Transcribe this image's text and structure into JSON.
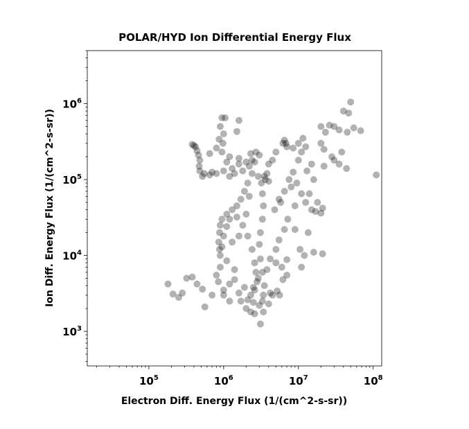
{
  "chart_data": {
    "type": "scatter",
    "title": "POLAR/HYD  Ion Differential Energy Flux",
    "xlabel": "Electron Diff. Energy Flux (1/(cm^2-s-sr))",
    "ylabel": "Ion Diff. Energy Flux (1/(cm^2-s-sr))",
    "xscale": "log",
    "yscale": "log",
    "xlim": [
      15000,
      130000000
    ],
    "ylim": [
      350,
      5000000
    ],
    "grid": false,
    "marker_color": "#000000",
    "marker_alpha": 0.3,
    "x_ticks": [
      {
        "value": 100000,
        "base": "10",
        "exp": "5"
      },
      {
        "value": 1000000,
        "base": "10",
        "exp": "6"
      },
      {
        "value": 10000000,
        "base": "10",
        "exp": "7"
      },
      {
        "value": 100000000,
        "base": "10",
        "exp": "8"
      }
    ],
    "y_ticks": [
      {
        "value": 1000,
        "base": "10",
        "exp": "3"
      },
      {
        "value": 10000,
        "base": "10",
        "exp": "4"
      },
      {
        "value": 100000,
        "base": "10",
        "exp": "5"
      },
      {
        "value": 1000000,
        "base": "10",
        "exp": "6"
      }
    ],
    "series": [
      {
        "points": [
          [
            380000,
            290000
          ],
          [
            400000,
            280000
          ],
          [
            420000,
            270000
          ],
          [
            440000,
            240000
          ],
          [
            460000,
            210000
          ],
          [
            480000,
            180000
          ],
          [
            470000,
            150000
          ],
          [
            480000,
            130000
          ],
          [
            550000,
            120000
          ],
          [
            650000,
            115000
          ],
          [
            800000,
            120000
          ],
          [
            1000000,
            130000
          ],
          [
            1300000,
            140000
          ],
          [
            1600000,
            160000
          ],
          [
            2000000,
            170000
          ],
          [
            2400000,
            180000
          ],
          [
            2600000,
            170000
          ],
          [
            2400000,
            120000
          ],
          [
            2100000,
            90000
          ],
          [
            1900000,
            70000
          ],
          [
            1700000,
            55000
          ],
          [
            1500000,
            45000
          ],
          [
            1300000,
            40000
          ],
          [
            1100000,
            35000
          ],
          [
            950000,
            30000
          ],
          [
            900000,
            25000
          ],
          [
            880000,
            20000
          ],
          [
            860000,
            15000
          ],
          [
            880000,
            12000
          ],
          [
            900000,
            10000
          ],
          [
            950000,
            13000
          ],
          [
            1000000,
            18000
          ],
          [
            1100000,
            24000
          ],
          [
            1200000,
            30000
          ],
          [
            1500000,
            32000
          ],
          [
            1800000,
            25000
          ],
          [
            2100000,
            18000
          ],
          [
            2400000,
            12000
          ],
          [
            2600000,
            8000
          ],
          [
            2700000,
            6000
          ],
          [
            2800000,
            4500
          ],
          [
            2600000,
            3500
          ],
          [
            2300000,
            3000
          ],
          [
            2100000,
            2600
          ],
          [
            2500000,
            2400
          ],
          [
            3000000,
            2200
          ],
          [
            3300000,
            2500
          ],
          [
            3400000,
            3000
          ],
          [
            3500000,
            4000
          ],
          [
            3300000,
            6000
          ],
          [
            3100000,
            9000
          ],
          [
            3000000,
            14000
          ],
          [
            3100000,
            20000
          ],
          [
            3300000,
            30000
          ],
          [
            3400000,
            45000
          ],
          [
            3300000,
            65000
          ],
          [
            3200000,
            90000
          ],
          [
            3500000,
            110000
          ],
          [
            3800000,
            120000
          ],
          [
            3600000,
            100000
          ],
          [
            2900000,
            110000
          ],
          [
            2200000,
            150000
          ],
          [
            1800000,
            130000
          ],
          [
            1400000,
            120000
          ],
          [
            1200000,
            110000
          ],
          [
            700000,
            125000
          ],
          [
            520000,
            110000
          ],
          [
            1600000,
            3200
          ],
          [
            1900000,
            3800
          ],
          [
            4200000,
            3200
          ],
          [
            180000,
            4200
          ],
          [
            210000,
            3100
          ],
          [
            250000,
            2800
          ],
          [
            280000,
            3200
          ],
          [
            320000,
            5000
          ],
          [
            380000,
            5200
          ],
          [
            440000,
            4200
          ],
          [
            520000,
            3600
          ],
          [
            560000,
            2100
          ],
          [
            700000,
            3000
          ],
          [
            850000,
            4500
          ],
          [
            1000000,
            3000
          ],
          [
            1200000,
            4200
          ],
          [
            1400000,
            4800
          ],
          [
            1700000,
            2500
          ],
          [
            2000000,
            2000
          ],
          [
            2300000,
            1800
          ],
          [
            2600000,
            1700
          ],
          [
            3100000,
            1250
          ],
          [
            3400000,
            1800
          ],
          [
            4000000,
            2300
          ],
          [
            4500000,
            3000
          ],
          [
            5200000,
            3400
          ],
          [
            5600000,
            3000
          ],
          [
            6200000,
            4800
          ],
          [
            7000000,
            5500
          ],
          [
            3800000,
            6500
          ],
          [
            4200000,
            9000
          ],
          [
            5000000,
            8000
          ],
          [
            6000000,
            7000
          ],
          [
            7000000,
            8800
          ],
          [
            1100000,
            8500
          ],
          [
            1400000,
            6500
          ],
          [
            900000,
            7000
          ],
          [
            800000,
            5500
          ],
          [
            5000000,
            12000
          ],
          [
            5500000,
            16000
          ],
          [
            6500000,
            22000
          ],
          [
            7200000,
            30000
          ],
          [
            9000000,
            22000
          ],
          [
            10500000,
            12000
          ],
          [
            11000000,
            7000
          ],
          [
            12000000,
            10000
          ],
          [
            13500000,
            20000
          ],
          [
            16000000,
            11000
          ],
          [
            21000000,
            10500
          ],
          [
            4800000,
            40000
          ],
          [
            5800000,
            50000
          ],
          [
            6500000,
            70000
          ],
          [
            7500000,
            100000
          ],
          [
            8500000,
            125000
          ],
          [
            9500000,
            90000
          ],
          [
            11000000,
            65000
          ],
          [
            12500000,
            50000
          ],
          [
            15000000,
            40000
          ],
          [
            17000000,
            38000
          ],
          [
            20000000,
            36000
          ],
          [
            13000000,
            130000
          ],
          [
            15000000,
            160000
          ],
          [
            10000000,
            180000
          ],
          [
            11000000,
            230000
          ],
          [
            12500000,
            270000
          ],
          [
            11500000,
            350000
          ],
          [
            10000000,
            300000
          ],
          [
            8500000,
            260000
          ],
          [
            6500000,
            330000
          ],
          [
            7000000,
            270000
          ],
          [
            6200000,
            300000
          ],
          [
            5000000,
            230000
          ],
          [
            4500000,
            180000
          ],
          [
            4000000,
            160000
          ],
          [
            3000000,
            210000
          ],
          [
            2700000,
            230000
          ],
          [
            2300000,
            220000
          ],
          [
            1600000,
            190000
          ],
          [
            1200000,
            200000
          ],
          [
            1100000,
            170000
          ],
          [
            950000,
            230000
          ],
          [
            800000,
            260000
          ],
          [
            650000,
            220000
          ],
          [
            950000,
            650000
          ],
          [
            1050000,
            650000
          ],
          [
            1600000,
            600000
          ],
          [
            900000,
            500000
          ],
          [
            1000000,
            400000
          ],
          [
            1500000,
            430000
          ],
          [
            870000,
            340000
          ],
          [
            980000,
            300000
          ],
          [
            20000000,
            500000
          ],
          [
            23000000,
            420000
          ],
          [
            26000000,
            520000
          ],
          [
            30000000,
            500000
          ],
          [
            35000000,
            450000
          ],
          [
            40000000,
            800000
          ],
          [
            47000000,
            750000
          ],
          [
            50000000,
            1050000
          ],
          [
            55000000,
            480000
          ],
          [
            68000000,
            440000
          ],
          [
            45000000,
            420000
          ],
          [
            20000000,
            300000
          ],
          [
            22000000,
            250000
          ],
          [
            28000000,
            200000
          ],
          [
            30000000,
            180000
          ],
          [
            35000000,
            160000
          ],
          [
            38000000,
            230000
          ],
          [
            22000000,
            150000
          ],
          [
            44000000,
            140000
          ],
          [
            110000000,
            115000
          ],
          [
            18000000,
            50000
          ],
          [
            21000000,
            42000
          ],
          [
            16000000,
            100000
          ],
          [
            14000000,
            65000
          ],
          [
            9000000,
            45000
          ],
          [
            8000000,
            80000
          ],
          [
            6800000,
            300000
          ],
          [
            5500000,
            55000
          ],
          [
            4000000,
            95000
          ],
          [
            2200000,
            60000
          ],
          [
            2000000,
            35000
          ],
          [
            1600000,
            18000
          ],
          [
            1300000,
            15000
          ],
          [
            2500000,
            3800
          ],
          [
            2900000,
            5000
          ],
          [
            1200000,
            2500
          ],
          [
            1000000,
            3500
          ]
        ]
      }
    ]
  }
}
